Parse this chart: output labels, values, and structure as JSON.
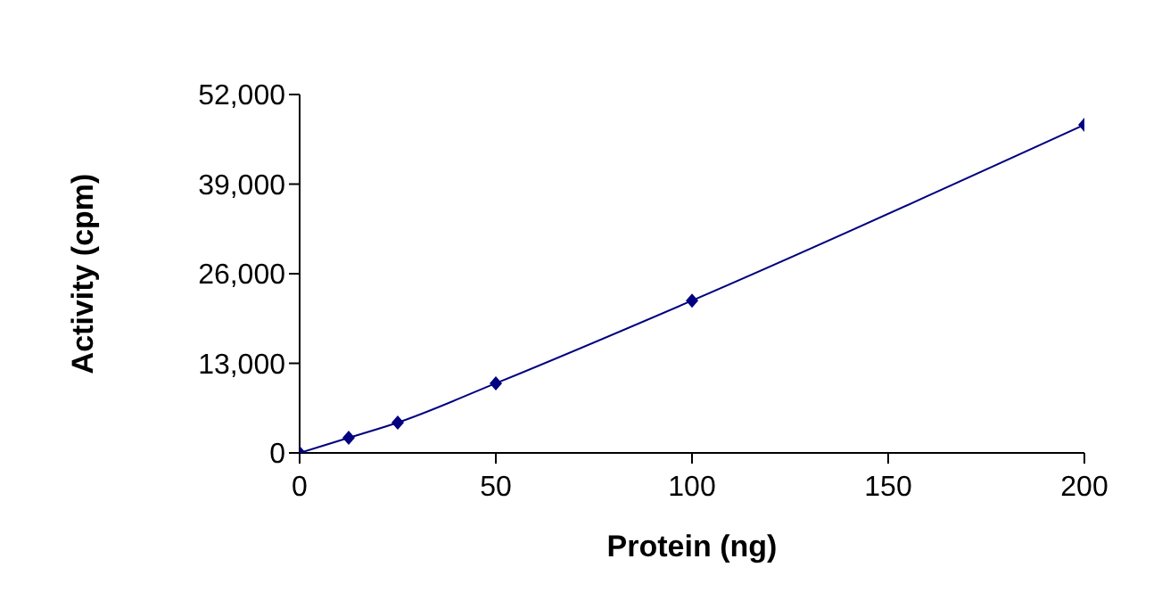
{
  "chart_data": {
    "type": "line",
    "xlabel": "Protein (ng)",
    "ylabel": "Activity (cpm)",
    "x": [
      0,
      12.5,
      25,
      50,
      100,
      200
    ],
    "series": [
      {
        "color": "#000080",
        "values": [
          0,
          2200,
          4400,
          10100,
          22100,
          47600
        ]
      }
    ],
    "xlim": [
      0,
      200
    ],
    "xticks": [
      0,
      50,
      100,
      150,
      200
    ],
    "ylim": [
      0,
      52000
    ],
    "yticks": [
      {
        "value": 0,
        "label": "0"
      },
      {
        "value": 13000,
        "label": "13,000"
      },
      {
        "value": 26000,
        "label": "26,000"
      },
      {
        "value": 39000,
        "label": "39,000"
      },
      {
        "value": 52000,
        "label": "52,000"
      }
    ],
    "marker": "diamond",
    "grid": false,
    "legend": false
  }
}
